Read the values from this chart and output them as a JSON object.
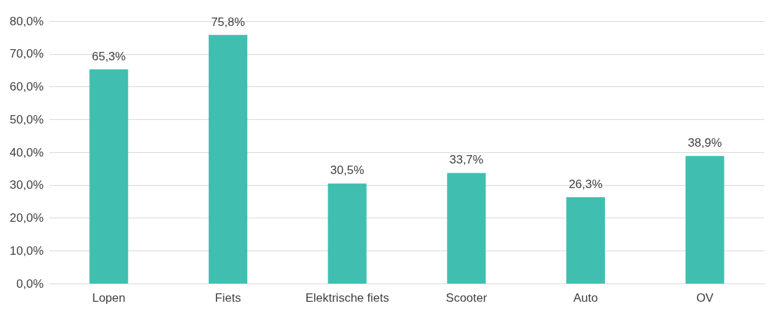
{
  "chart_data": {
    "type": "bar",
    "categories": [
      "Lopen",
      "Fiets",
      "Elektrische fiets",
      "Scooter",
      "Auto",
      "OV"
    ],
    "values": [
      65.3,
      75.8,
      30.5,
      33.7,
      26.3,
      38.9
    ],
    "value_labels": [
      "65,3%",
      "75,8%",
      "30,5%",
      "33,7%",
      "26,3%",
      "38,9%"
    ],
    "color": "#40bfb0",
    "ylim": [
      0,
      80
    ],
    "yticks": [
      {
        "value": 0,
        "label": "0,0%"
      },
      {
        "value": 10,
        "label": "10,0%"
      },
      {
        "value": 20,
        "label": "20,0%"
      },
      {
        "value": 30,
        "label": "30,0%"
      },
      {
        "value": 40,
        "label": "40,0%"
      },
      {
        "value": 50,
        "label": "50,0%"
      },
      {
        "value": 60,
        "label": "60,0%"
      },
      {
        "value": 70,
        "label": "70,0%"
      },
      {
        "value": 80,
        "label": "80,0%"
      }
    ],
    "grid": "y"
  }
}
